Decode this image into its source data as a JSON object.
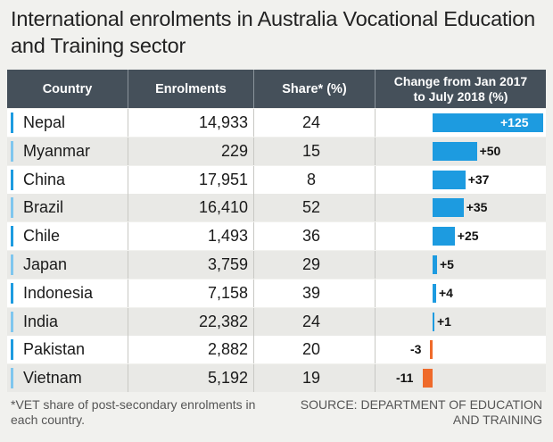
{
  "title": "International enrolments in Australia Vocational Education and Training sector",
  "footnote": "*VET share of post-secondary enrolments in each country.",
  "source": "SOURCE: DEPARTMENT OF EDUCATION AND TRAINING",
  "colors": {
    "header_bg": "#45505a",
    "positive_bar": "#1d9be0",
    "negative_bar": "#ef6a2a",
    "accent_dark": "#1d9be0",
    "accent_light": "#7fc6ee"
  },
  "chart_data": {
    "type": "table",
    "columns": [
      "Country",
      "Enrolments",
      "Share* (%)"
    ],
    "change_header": [
      "Change from Jan 2017",
      "to July 2018 (%)"
    ],
    "rows": [
      {
        "country": "Nepal",
        "enrolments": "14,933",
        "share": "24",
        "change": 125,
        "change_label": "+125"
      },
      {
        "country": "Myanmar",
        "enrolments": "229",
        "share": "15",
        "change": 50,
        "change_label": "+50"
      },
      {
        "country": "China",
        "enrolments": "17,951",
        "share": "8",
        "change": 37,
        "change_label": "+37"
      },
      {
        "country": "Brazil",
        "enrolments": "16,410",
        "share": "52",
        "change": 35,
        "change_label": "+35"
      },
      {
        "country": "Chile",
        "enrolments": "1,493",
        "share": "36",
        "change": 25,
        "change_label": "+25"
      },
      {
        "country": "Japan",
        "enrolments": "3,759",
        "share": "29",
        "change": 5,
        "change_label": "+5"
      },
      {
        "country": "Indonesia",
        "enrolments": "7,158",
        "share": "39",
        "change": 4,
        "change_label": "+4"
      },
      {
        "country": "India",
        "enrolments": "22,382",
        "share": "24",
        "change": 1,
        "change_label": "+1"
      },
      {
        "country": "Pakistan",
        "enrolments": "2,882",
        "share": "20",
        "change": -3,
        "change_label": "-3"
      },
      {
        "country": "Vietnam",
        "enrolments": "5,192",
        "share": "19",
        "change": -11,
        "change_label": "-11"
      }
    ]
  }
}
